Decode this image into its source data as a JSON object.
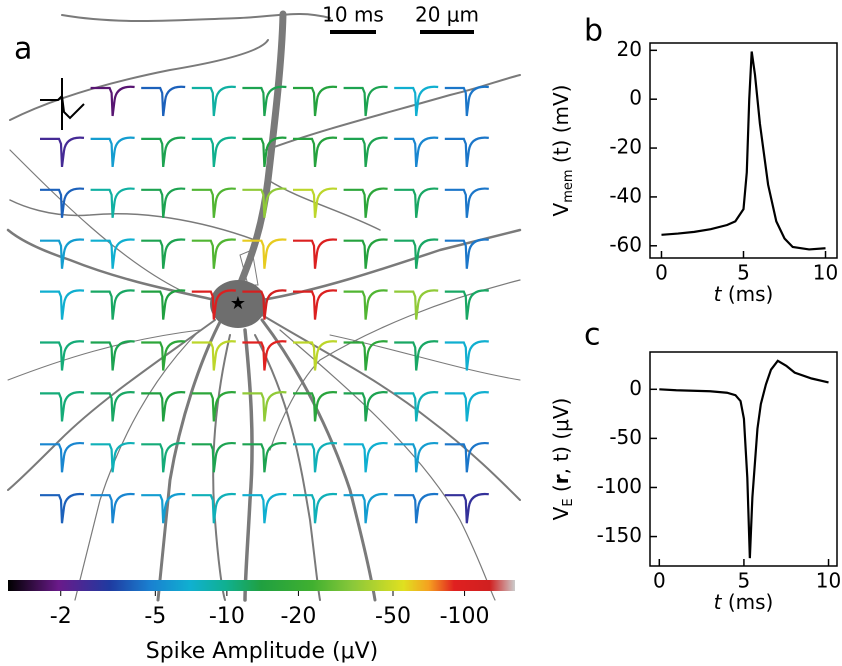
{
  "chart_data": [
    {
      "type": "spike_grid",
      "panel_label": "a",
      "colormap": "nipy_spectral",
      "annotations": [
        "10 ms",
        "20 μm"
      ],
      "values": [
        [
          null,
          -1.8,
          -4,
          -9,
          -13,
          -15,
          -13,
          -7,
          -4.5
        ],
        [
          -2.5,
          -6,
          -13,
          -10,
          -14,
          -15,
          -13,
          -5,
          -4.5
        ],
        [
          -4,
          -9,
          -13,
          -25,
          -35,
          -45,
          -17,
          -12,
          -4.5
        ],
        [
          -6,
          -7,
          -13,
          -25,
          -60,
          -100,
          -15,
          -12,
          -4.5
        ],
        [
          -7,
          -12,
          -14,
          -100,
          -120,
          -100,
          -25,
          -35,
          -12
        ],
        [
          -11,
          -13,
          -17,
          -45,
          -90,
          -45,
          -17,
          -12,
          -7
        ],
        [
          -11,
          -12,
          -14,
          -17,
          -35,
          -16,
          -13,
          -8,
          -7
        ],
        [
          -5,
          -8,
          -11,
          -13,
          -13,
          -8,
          -7,
          -6,
          -4.5
        ],
        [
          -4,
          -5,
          -6,
          -8,
          -7,
          -8,
          -6,
          -4.5,
          -2.8
        ]
      ],
      "colorbar": {
        "label": "Spike Amplitude (μV)",
        "log": true,
        "clim": [
          -1.2,
          -163
        ],
        "ticks": [
          -2,
          -5,
          -10,
          -20,
          -50,
          -100
        ]
      }
    },
    {
      "type": "line",
      "panel_label": "b",
      "color": "#000000",
      "x": [
        0,
        1,
        2,
        3,
        4,
        4.5,
        5,
        5.2,
        5.35,
        5.5,
        5.7,
        6,
        6.5,
        7,
        7.5,
        8,
        9,
        10
      ],
      "values": [
        -55.5,
        -55,
        -54.3,
        -53.2,
        -51.5,
        -50,
        -45,
        -30,
        0,
        19.5,
        10,
        -10,
        -35,
        -50,
        -57,
        -60.5,
        -61.5,
        -61
      ],
      "xlim": [
        -0.7,
        10.7
      ],
      "ylim": [
        -65,
        23
      ],
      "xticks": [
        0,
        5,
        10
      ],
      "yticks": [
        -60,
        -40,
        -20,
        0,
        20
      ],
      "xlabel": {
        "var": "t",
        "unit": " (ms)"
      },
      "ylabel": {
        "main": "V",
        "sub": "mem",
        "rest": " (t) (mV)"
      }
    },
    {
      "type": "line",
      "panel_label": "c",
      "color": "#000000",
      "x": [
        0,
        1,
        2,
        3,
        4,
        4.5,
        4.8,
        5,
        5.2,
        5.35,
        5.5,
        5.8,
        6,
        6.3,
        6.6,
        7,
        7.5,
        8,
        9,
        10
      ],
      "values": [
        0,
        -1,
        -1.5,
        -2,
        -3.5,
        -6,
        -12,
        -30,
        -90,
        -172,
        -110,
        -40,
        -15,
        5,
        20,
        29,
        24,
        17,
        11,
        7
      ],
      "xlim": [
        -0.55,
        10.5
      ],
      "ylim": [
        -180,
        38
      ],
      "xticks": [
        0,
        5,
        10
      ],
      "yticks": [
        -150,
        -100,
        -50,
        0
      ],
      "xlabel": {
        "var": "t",
        "unit": " (ms)"
      },
      "ylabel": {
        "main": "V",
        "sub": "E",
        "open": " (",
        "bold": "r",
        "rest": ", t) (μV)"
      }
    }
  ]
}
